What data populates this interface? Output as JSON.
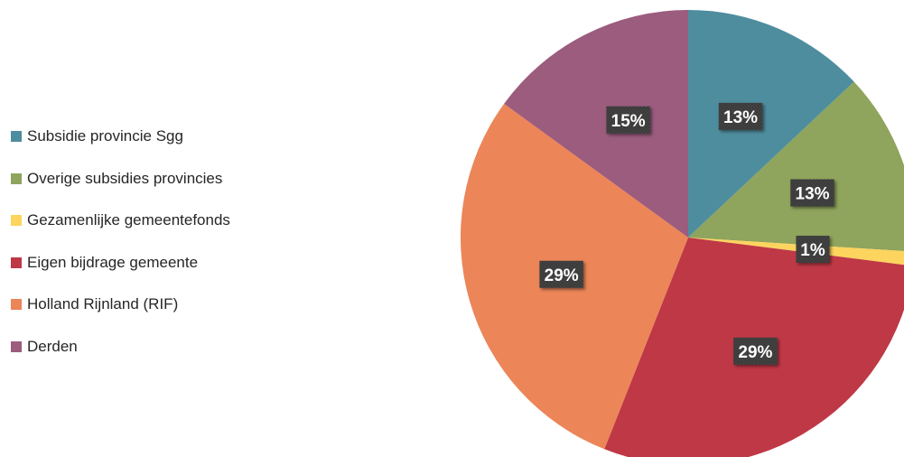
{
  "chart_data": {
    "type": "pie",
    "title": "",
    "legend_position": "left",
    "slices": [
      {
        "label": "Subsidie provincie Sgg",
        "value": 13,
        "value_label": "13%",
        "color": "#4e8d9e"
      },
      {
        "label": "Overige subsidies provincies",
        "value": 13,
        "value_label": "13%",
        "color": "#8fa45c"
      },
      {
        "label": "Gezamenlijke gemeentefonds",
        "value": 1,
        "value_label": "1%",
        "color": "#fcd45e"
      },
      {
        "label": "Eigen bijdrage gemeente",
        "value": 29,
        "value_label": "29%",
        "color": "#bf3846"
      },
      {
        "label": "Holland Rijnland (RIF)",
        "value": 29,
        "value_label": "29%",
        "color": "#ec8558"
      },
      {
        "label": "Derden",
        "value": 15,
        "value_label": "15%",
        "color": "#9b5c7e"
      }
    ]
  }
}
